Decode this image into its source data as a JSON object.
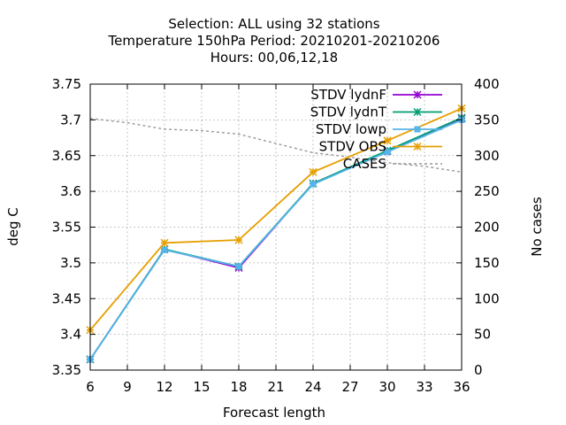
{
  "chart_data": {
    "type": "line",
    "title_lines": [
      "Selection: ALL using    32 stations",
      "Temperature 150hPa   Period: 20210201-20210206",
      "Hours:  00,06,12,18"
    ],
    "xlabel": "Forecast length",
    "ylabel": "deg C",
    "y2label": "No cases",
    "xlim": [
      6,
      36
    ],
    "ylim": [
      3.35,
      3.75
    ],
    "y2lim": [
      0,
      400
    ],
    "x_ticks": [
      "6",
      "9",
      "12",
      "15",
      "18",
      "21",
      "24",
      "27",
      "30",
      "33",
      "36"
    ],
    "y_ticks": [
      "3.35",
      "3.4",
      "3.45",
      "3.5",
      "3.55",
      "3.6",
      "3.65",
      "3.7",
      "3.75"
    ],
    "y2_ticks": [
      "0",
      "50",
      "100",
      "150",
      "200",
      "250",
      "300",
      "350",
      "400"
    ],
    "grid": true,
    "legend_position": "top-right",
    "x": [
      6,
      12,
      18,
      24,
      30,
      36
    ],
    "series": [
      {
        "name": "STDV lydnF",
        "color": "#9400d3",
        "marker": "star",
        "axis": "y1",
        "values": [
          3.365,
          3.519,
          3.493,
          3.611,
          3.656,
          3.702
        ]
      },
      {
        "name": "STDV lydnT",
        "color": "#009e73",
        "marker": "star",
        "axis": "y1",
        "values": [
          3.365,
          3.519,
          3.495,
          3.611,
          3.657,
          3.703
        ]
      },
      {
        "name": "STDV lowp",
        "color": "#56b4e9",
        "marker": "box",
        "axis": "y1",
        "values": [
          3.365,
          3.518,
          3.495,
          3.61,
          3.655,
          3.7
        ]
      },
      {
        "name": "STDV OBS",
        "color": "#e69f00",
        "marker": "star",
        "axis": "y1",
        "values": [
          3.406,
          3.528,
          3.532,
          3.627,
          3.671,
          3.716
        ]
      },
      {
        "name": "CASES",
        "color": "#999999",
        "marker": "none",
        "dashed": true,
        "axis": "y2",
        "x": [
          6,
          9,
          12,
          15,
          18,
          21,
          24,
          27,
          30,
          33,
          36
        ],
        "values": [
          352,
          346,
          337,
          335,
          330,
          317,
          304,
          298,
          290,
          285,
          277
        ]
      }
    ]
  }
}
